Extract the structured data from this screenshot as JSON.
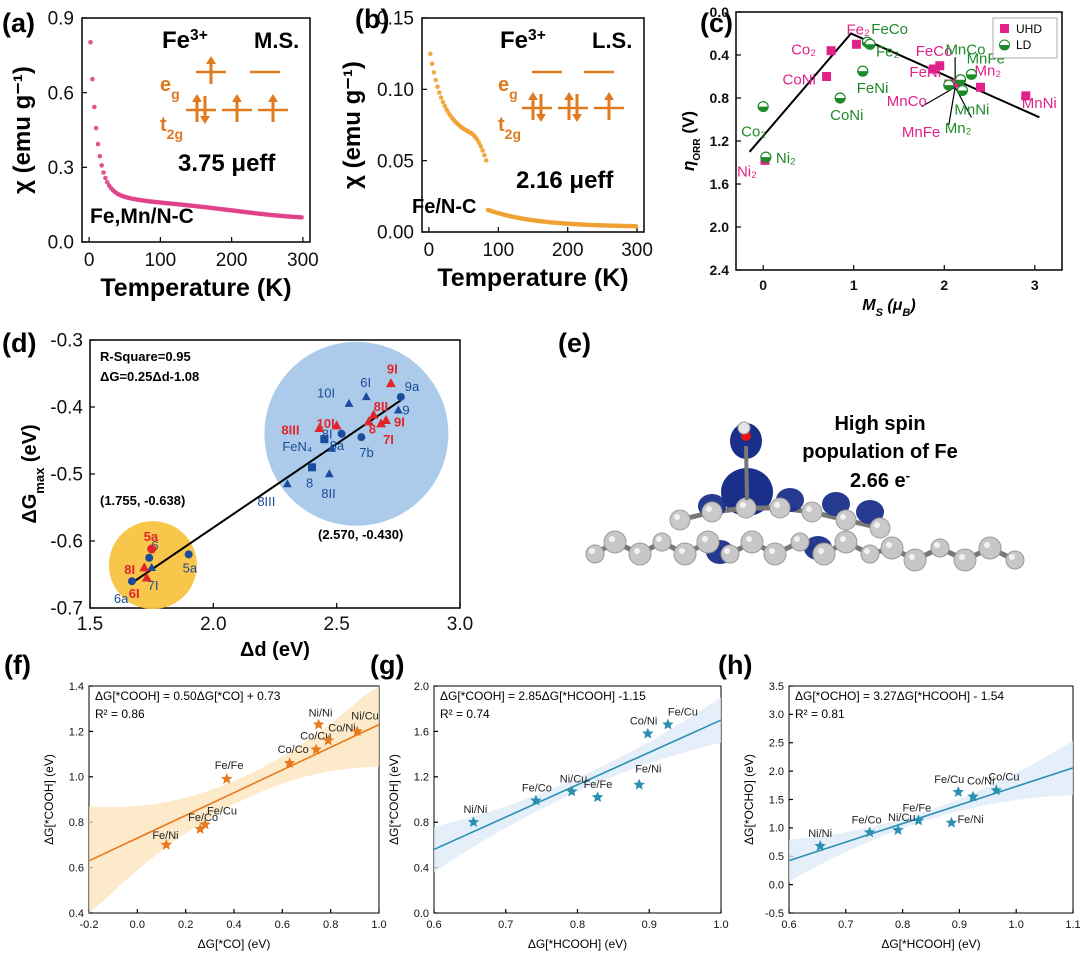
{
  "panel_labels": [
    "(a)",
    "(b)",
    "(c)",
    "(d)",
    "(e)",
    "(f)",
    "(g)",
    "(h)"
  ],
  "chart_data": [
    {
      "id": "a",
      "type": "scatter",
      "xlabel": "Temperature (K)",
      "ylabel": "χ (emu g⁻¹)",
      "xlim": [
        -10,
        310
      ],
      "ylim": [
        0,
        0.9
      ],
      "xticks": [
        "0",
        "100",
        "200",
        "300"
      ],
      "yticks": [
        "0.0",
        "0.3",
        "0.6",
        "0.9"
      ],
      "series_color": "#e0408a",
      "curve": "curie_weiss",
      "curve_params": {
        "A": 0.115,
        "B": 0.102,
        "C": 0.0003,
        "T0": 10,
        "K": 0.85
      },
      "x_range": [
        2,
        300
      ],
      "ion": "Fe",
      "ion_sup": "3+",
      "spin_state": "M.S.",
      "eg_label": "e",
      "eg_sub": "g",
      "t2g_label": "t",
      "t2g_sub": "2g",
      "moment_text": "3.75 μeff",
      "sample_label": "Fe,Mn/N-C"
    },
    {
      "id": "b",
      "type": "scatter",
      "xlabel": "Temperature (K)",
      "ylabel": "χ (emu g⁻¹)",
      "xlim": [
        -10,
        310
      ],
      "ylim": [
        0,
        0.15
      ],
      "xticks": [
        "0",
        "100",
        "200",
        "300"
      ],
      "yticks": [
        "0.00",
        "0.05",
        "0.10",
        "0.15"
      ],
      "series_color": "#f0a030",
      "curve": "drop",
      "curve_params": {
        "T_drop": 85
      },
      "x_range": [
        2,
        300
      ],
      "ion": "Fe",
      "ion_sup": "3+",
      "spin_state": "L.S.",
      "eg_label": "e",
      "eg_sub": "g",
      "t2g_label": "t",
      "t2g_sub": "2g",
      "moment_text": "2.16 μeff",
      "sample_label": "Fe/N-C"
    },
    {
      "id": "c",
      "type": "scatter",
      "xlabel": "Ms (μB)",
      "ylabel": "ηORR (V)",
      "xlim": [
        -0.3,
        3.3
      ],
      "ylim": [
        0,
        2.4
      ],
      "y_inverted": true,
      "xticks": [
        "0",
        "1",
        "2",
        "3"
      ],
      "yticks": [
        "0.0",
        "0.4",
        "0.8",
        "1.2",
        "1.6",
        "2.0",
        "2.4"
      ],
      "legend": [
        {
          "name": "UHD",
          "color": "#e0218a"
        },
        {
          "name": "LD",
          "color": "#1e8a2a"
        }
      ],
      "points_uhd": [
        {
          "label": "Fe₂",
          "x": 1.03,
          "y": 0.3
        },
        {
          "label": "Co₂",
          "x": 0.75,
          "y": 0.36
        },
        {
          "label": "CoNi",
          "x": 0.7,
          "y": 0.6
        },
        {
          "label": "FeCo",
          "x": 1.95,
          "y": 0.5
        },
        {
          "label": "FeNi",
          "x": 1.88,
          "y": 0.53
        },
        {
          "label": "Mn₂",
          "x": 2.4,
          "y": 0.7
        },
        {
          "label": "MnCo",
          "x": 2.05,
          "y": 0.67
        },
        {
          "label": "MnFe",
          "x": 2.15,
          "y": 0.66
        },
        {
          "label": "MnNi",
          "x": 2.9,
          "y": 0.78
        },
        {
          "label": "Ni₂",
          "x": 0.02,
          "y": 1.38
        }
      ],
      "points_ld": [
        {
          "label": "FeCo",
          "x": 1.15,
          "y": 0.28
        },
        {
          "label": "Fe₂",
          "x": 1.18,
          "y": 0.3
        },
        {
          "label": "FeNi",
          "x": 1.1,
          "y": 0.55
        },
        {
          "label": "MnCo",
          "x": 2.3,
          "y": 0.58
        },
        {
          "label": "MnFe",
          "x": 2.18,
          "y": 0.63
        },
        {
          "label": "Mn₂",
          "x": 2.05,
          "y": 0.68
        },
        {
          "label": "MnNi",
          "x": 2.2,
          "y": 0.73
        },
        {
          "label": "CoNi",
          "x": 0.85,
          "y": 0.8
        },
        {
          "label": "Co₂",
          "x": 0.0,
          "y": 0.88
        },
        {
          "label": "Ni₂",
          "x": 0.03,
          "y": 1.35
        }
      ],
      "volcano": [
        [
          -0.15,
          1.3
        ],
        [
          0.97,
          0.2
        ],
        [
          3.05,
          0.98
        ]
      ]
    },
    {
      "id": "d",
      "type": "scatter",
      "xlabel": "Δd (eV)",
      "ylabel": "ΔGmax (eV)",
      "xlim": [
        1.5,
        3.0
      ],
      "ylim": [
        -0.7,
        -0.3
      ],
      "xticks": [
        "1.5",
        "2.0",
        "2.5",
        "3.0"
      ],
      "yticks": [
        "-0.3",
        "-0.4",
        "-0.5",
        "-0.6",
        "-0.7"
      ],
      "stats_r2": "R-Square=0.95",
      "stats_eq": "ΔG=0.25Δd-1.08",
      "annot_low": "(1.755, -0.638)",
      "annot_high": "(2.570, -0.430)",
      "fit_line": [
        [
          1.67,
          -0.6625
        ],
        [
          2.76,
          -0.39
        ]
      ],
      "points_blue": [
        {
          "label": "6a",
          "x": 1.67,
          "y": -0.66,
          "shape": "circle"
        },
        {
          "label": "6",
          "x": 1.74,
          "y": -0.625,
          "shape": "circle"
        },
        {
          "label": "7I",
          "x": 1.75,
          "y": -0.64,
          "shape": "triangle"
        },
        {
          "label": "5a",
          "x": 1.9,
          "y": -0.62,
          "shape": "circle"
        },
        {
          "label": "8III",
          "x": 2.3,
          "y": -0.515,
          "shape": "triangle"
        },
        {
          "label": "8",
          "x": 2.4,
          "y": -0.49,
          "shape": "square"
        },
        {
          "label": "8II",
          "x": 2.47,
          "y": -0.5,
          "shape": "triangle"
        },
        {
          "label": "8I",
          "x": 2.48,
          "y": -0.462,
          "shape": "triangle"
        },
        {
          "label": "FeN₄",
          "x": 2.45,
          "y": -0.448,
          "shape": "square"
        },
        {
          "label": "8a",
          "x": 2.52,
          "y": -0.44,
          "shape": "circle"
        },
        {
          "label": "7b",
          "x": 2.6,
          "y": -0.445,
          "shape": "circle"
        },
        {
          "label": "10I",
          "x": 2.55,
          "y": -0.395,
          "shape": "triangle"
        },
        {
          "label": "6I",
          "x": 2.62,
          "y": -0.385,
          "shape": "triangle"
        },
        {
          "label": "9a",
          "x": 2.76,
          "y": -0.385,
          "shape": "circle"
        },
        {
          "label": "9",
          "x": 2.75,
          "y": -0.405,
          "shape": "triangle"
        }
      ],
      "points_red": [
        {
          "label": "5a",
          "x": 1.75,
          "y": -0.612,
          "shape": "circle"
        },
        {
          "label": "8I",
          "x": 1.72,
          "y": -0.64,
          "shape": "triangle"
        },
        {
          "label": "6I",
          "x": 1.73,
          "y": -0.655,
          "shape": "triangle"
        },
        {
          "label": "8III",
          "x": 2.43,
          "y": -0.432,
          "shape": "triangle"
        },
        {
          "label": "10I",
          "x": 2.5,
          "y": -0.428,
          "shape": "triangle"
        },
        {
          "label": "9I",
          "x": 2.72,
          "y": -0.365,
          "shape": "triangle"
        },
        {
          "label": "8II",
          "x": 2.65,
          "y": -0.412,
          "shape": "triangle"
        },
        {
          "label": "8",
          "x": 2.63,
          "y": -0.422,
          "shape": "triangle"
        },
        {
          "label": "7I",
          "x": 2.68,
          "y": -0.425,
          "shape": "triangle"
        },
        {
          "label": "9I",
          "x": 2.7,
          "y": -0.42,
          "shape": "triangle"
        }
      ]
    },
    {
      "id": "f",
      "type": "scatter",
      "xlabel": "ΔG[*CO] (eV)",
      "ylabel": "ΔG[*COOH] (eV)",
      "xlim": [
        -0.2,
        1.0
      ],
      "ylim": [
        0.4,
        1.4
      ],
      "xticks": [
        "-0.2",
        "0.0",
        "0.2",
        "0.4",
        "0.6",
        "0.8",
        "1.0"
      ],
      "yticks": [
        "0.4",
        "0.6",
        "0.8",
        "1.0",
        "1.2",
        "1.4"
      ],
      "equation": "ΔG[*COOH] = 0.50ΔG[*CO] + 0.73",
      "r2": "R² = 0.86",
      "color": "#e87a1e",
      "band_color": "#fbe3b8",
      "slope": 0.5,
      "intercept": 0.73,
      "points": [
        {
          "label": "Fe/Ni",
          "x": 0.12,
          "y": 0.7
        },
        {
          "label": "Fe/Co",
          "x": 0.26,
          "y": 0.77
        },
        {
          "label": "Fe/Cu",
          "x": 0.28,
          "y": 0.79
        },
        {
          "label": "Fe/Fe",
          "x": 0.37,
          "y": 0.99
        },
        {
          "label": "Co/Co",
          "x": 0.63,
          "y": 1.06
        },
        {
          "label": "Co/Cu",
          "x": 0.74,
          "y": 1.12
        },
        {
          "label": "Ni/Ni",
          "x": 0.75,
          "y": 1.23
        },
        {
          "label": "Co/Ni",
          "x": 0.79,
          "y": 1.16
        },
        {
          "label": "Ni/Cu",
          "x": 0.91,
          "y": 1.2
        }
      ]
    },
    {
      "id": "g",
      "type": "scatter",
      "xlabel": "ΔG[*HCOOH] (eV)",
      "ylabel": "ΔG[*COOH] (eV)",
      "xlim": [
        0.6,
        1.0
      ],
      "ylim": [
        0.0,
        2.0
      ],
      "xticks": [
        "0.6",
        "0.7",
        "0.8",
        "0.9",
        "1.0"
      ],
      "yticks": [
        "0.0",
        "0.4",
        "0.8",
        "1.2",
        "1.6",
        "2.0"
      ],
      "equation": "ΔG[*COOH] = 2.85ΔG[*HCOOH] -1.15",
      "r2": "R² = 0.74",
      "color": "#2a8fb0",
      "band_color": "#dce9f7",
      "slope": 2.85,
      "intercept": -1.15,
      "points": [
        {
          "label": "Ni/Ni",
          "x": 0.655,
          "y": 0.8
        },
        {
          "label": "Fe/Co",
          "x": 0.742,
          "y": 0.99
        },
        {
          "label": "Ni/Cu",
          "x": 0.792,
          "y": 1.07
        },
        {
          "label": "Fe/Fe",
          "x": 0.828,
          "y": 1.02
        },
        {
          "label": "Fe/Ni",
          "x": 0.886,
          "y": 1.13
        },
        {
          "label": "Co/Ni",
          "x": 0.898,
          "y": 1.58
        },
        {
          "label": "Fe/Cu",
          "x": 0.926,
          "y": 1.66
        }
      ]
    },
    {
      "id": "h",
      "type": "scatter",
      "xlabel": "ΔG[*HCOOH] (eV)",
      "ylabel": "ΔG[*OCHO] (eV)",
      "xlim": [
        0.6,
        1.1
      ],
      "ylim": [
        -0.5,
        3.5
      ],
      "xticks": [
        "0.6",
        "0.7",
        "0.8",
        "0.9",
        "1.0",
        "1.1"
      ],
      "yticks": [
        "-0.5",
        "0.0",
        "0.5",
        "1.0",
        "1.5",
        "2.0",
        "2.5",
        "3.0",
        "3.5"
      ],
      "equation": "ΔG[*OCHO] = 3.27ΔG[*HCOOH] - 1.54",
      "r2": "R² = 0.81",
      "color": "#2a8fb0",
      "band_color": "#dce9f7",
      "slope": 3.27,
      "intercept": -1.54,
      "points": [
        {
          "label": "Ni/Ni",
          "x": 0.655,
          "y": 0.68
        },
        {
          "label": "Fe/Co",
          "x": 0.742,
          "y": 0.92
        },
        {
          "label": "Ni/Cu",
          "x": 0.792,
          "y": 0.96
        },
        {
          "label": "Fe/Fe",
          "x": 0.828,
          "y": 1.13
        },
        {
          "label": "Fe/Ni",
          "x": 0.886,
          "y": 1.09
        },
        {
          "label": "Fe/Cu",
          "x": 0.898,
          "y": 1.63
        },
        {
          "label": "Co/Ni",
          "x": 0.924,
          "y": 1.55
        },
        {
          "label": "Co/Cu",
          "x": 0.965,
          "y": 1.66
        }
      ]
    }
  ],
  "molecule": {
    "title_line1": "High spin",
    "title_line2": "population of Fe",
    "value": "2.66 e",
    "value_sup": "-"
  }
}
